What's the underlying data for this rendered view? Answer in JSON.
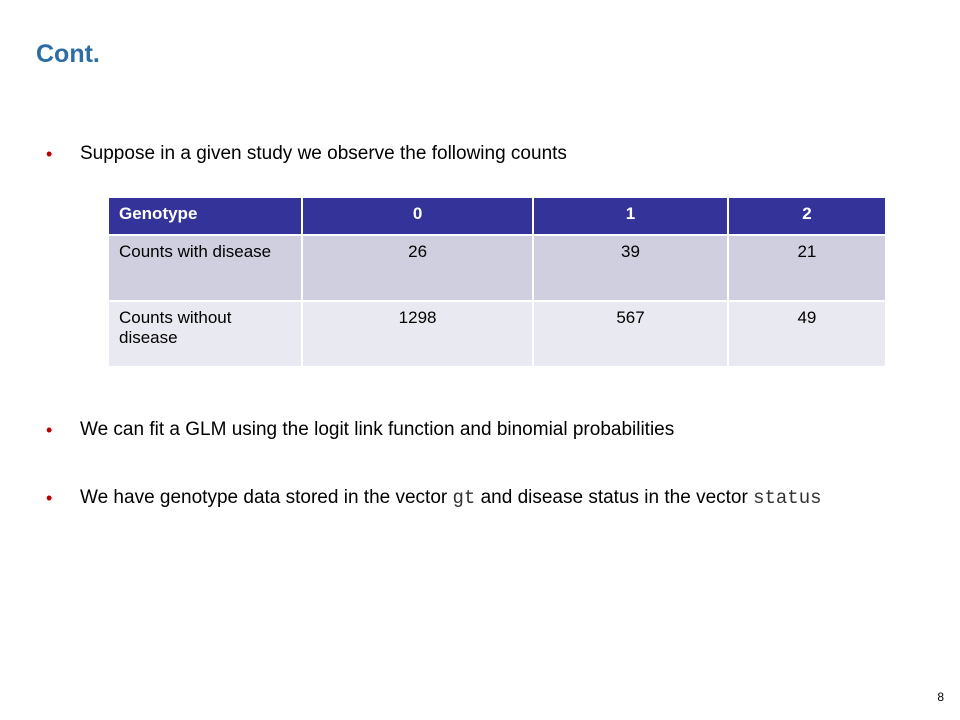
{
  "slide": {
    "title": "Cont.",
    "page_number": "8"
  },
  "bullets": {
    "b1": "Suppose in a given study we observe the following counts",
    "b2": "We can fit a GLM using the logit link function and binomial probabilities",
    "b3_pre": "We have genotype data stored in the vector ",
    "b3_code1": "gt",
    "b3_mid": " and disease status in the vector ",
    "b3_code2": "status",
    "bullet_color": "#c00000"
  },
  "table": {
    "headers": [
      "Genotype",
      "0",
      "1",
      "2"
    ],
    "rows": [
      {
        "label": "Counts with disease",
        "values": [
          "26",
          "39",
          "21"
        ]
      },
      {
        "label": "Counts without disease",
        "values": [
          "1298",
          "567",
          "49"
        ]
      }
    ],
    "header_color": "#333399"
  }
}
